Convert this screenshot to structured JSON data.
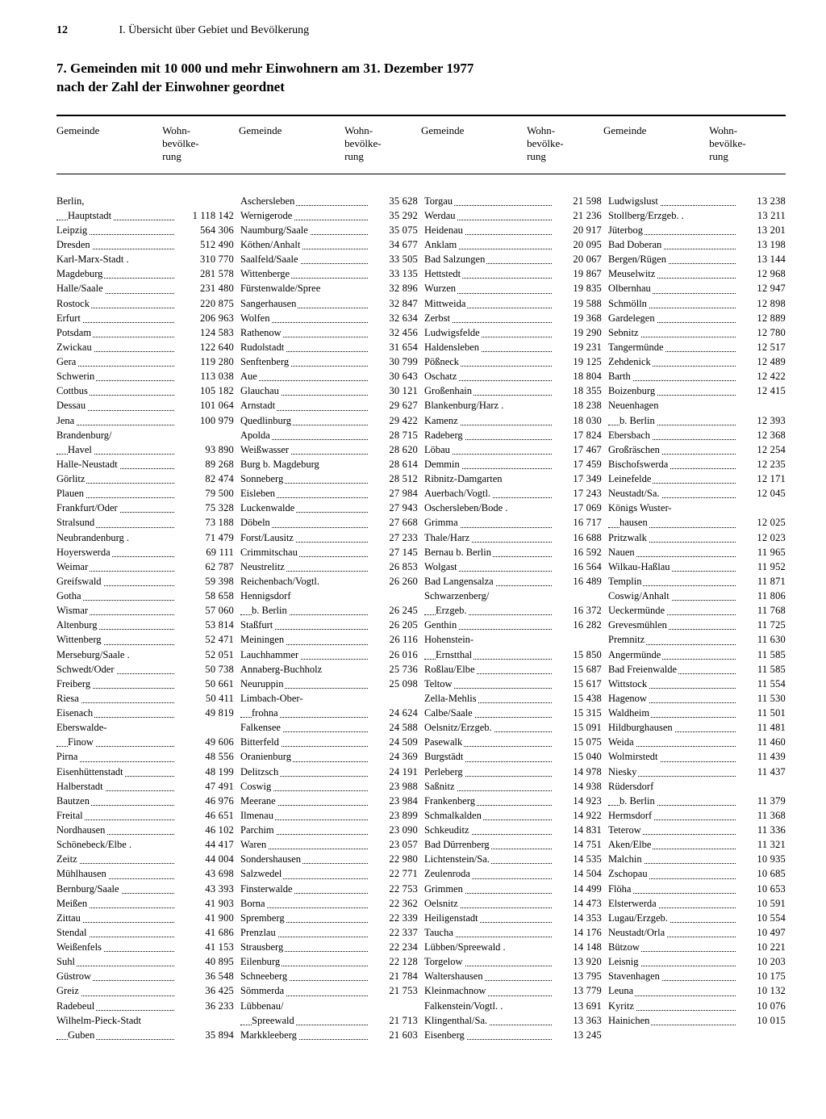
{
  "page_number": "12",
  "running_title": "I. Übersicht über Gebiet und Bevölkerung",
  "title_line1": "7. Gemeinden mit 10 000 und mehr Einwohnern am 31. Dezember 1977",
  "title_line2": "nach der Zahl der Einwohner geordnet",
  "header_gemeinde": "Gemeinde",
  "header_pop_l1": "Wohn-",
  "header_pop_l2": "bevölke-",
  "header_pop_l3": "rung",
  "table": {
    "type": "table",
    "columns": 4,
    "column_fields": [
      "Gemeinde",
      "Wohnbevölkerung"
    ],
    "font_family": "Times New Roman",
    "font_size_pt": 9,
    "text_color": "#000000",
    "background_color": "#ffffff",
    "rule_heavy_color": "#000000",
    "rule_light_color": "#000000",
    "dot_leader": true,
    "number_align": "right",
    "thousands_separator": " ",
    "col1": [
      {
        "name": "Berlin,",
        "pop": "",
        "nodots": true
      },
      {
        "name": "Hauptstadt",
        "pop": "1 118 142",
        "indent": true
      },
      {
        "name": "Leipzig",
        "pop": "564 306"
      },
      {
        "name": "Dresden",
        "pop": "512 490"
      },
      {
        "name": "Karl-Marx-Stadt .",
        "pop": "310 770",
        "nodots": true
      },
      {
        "name": "Magdeburg",
        "pop": "281 578"
      },
      {
        "name": "Halle/Saale",
        "pop": "231 480"
      },
      {
        "name": "Rostock",
        "pop": "220 875"
      },
      {
        "name": "Erfurt",
        "pop": "206 963"
      },
      {
        "name": "Potsdam",
        "pop": "124 583"
      },
      {
        "name": "Zwickau",
        "pop": "122 640"
      },
      {
        "name": "Gera",
        "pop": "119 280"
      },
      {
        "name": "Schwerin",
        "pop": "113 038"
      },
      {
        "name": "Cottbus",
        "pop": "105 182"
      },
      {
        "name": "Dessau",
        "pop": "101 064"
      },
      {
        "name": "Jena",
        "pop": "100 979"
      },
      {
        "name": "Brandenburg/",
        "pop": "",
        "nodots": true
      },
      {
        "name": "Havel",
        "pop": "93 890",
        "indent": true
      },
      {
        "name": "Halle-Neustadt",
        "pop": "89 268"
      },
      {
        "name": "Görlitz",
        "pop": "82 474"
      },
      {
        "name": "Plauen",
        "pop": "79 500"
      },
      {
        "name": "Frankfurt/Oder",
        "pop": "75 328"
      },
      {
        "name": "Stralsund",
        "pop": "73 188"
      },
      {
        "name": "Neubrandenburg .",
        "pop": "71 479",
        "nodots": true
      },
      {
        "name": "Hoyerswerda",
        "pop": "69 111"
      },
      {
        "name": "Weimar",
        "pop": "62 787"
      },
      {
        "name": "Greifswald",
        "pop": "59 398"
      },
      {
        "name": "Gotha",
        "pop": "58 658"
      },
      {
        "name": "Wismar",
        "pop": "57 060"
      },
      {
        "name": "Altenburg",
        "pop": "53 814"
      },
      {
        "name": "Wittenberg",
        "pop": "52 471"
      },
      {
        "name": "Merseburg/Saale .",
        "pop": "52 051",
        "nodots": true
      },
      {
        "name": "Schwedt/Oder",
        "pop": "50 738"
      },
      {
        "name": "Freiberg",
        "pop": "50 661"
      },
      {
        "name": "Riesa",
        "pop": "50 411"
      },
      {
        "name": "Eisenach",
        "pop": "49 819"
      },
      {
        "name": "Eberswalde-",
        "pop": "",
        "nodots": true
      },
      {
        "name": "Finow",
        "pop": "49 606",
        "indent": true
      },
      {
        "name": "Pirna",
        "pop": "48 556"
      },
      {
        "name": "Eisenhüttenstadt",
        "pop": "48 199"
      },
      {
        "name": "Halberstadt",
        "pop": "47 491"
      },
      {
        "name": "Bautzen",
        "pop": "46 976"
      },
      {
        "name": "Freital",
        "pop": "46 651"
      },
      {
        "name": "Nordhausen",
        "pop": "46 102"
      },
      {
        "name": "Schönebeck/Elbe .",
        "pop": "44 417",
        "nodots": true
      },
      {
        "name": "Zeitz",
        "pop": "44 004"
      },
      {
        "name": "Mühlhausen",
        "pop": "43 698"
      },
      {
        "name": "Bernburg/Saale",
        "pop": "43 393"
      },
      {
        "name": "Meißen",
        "pop": "41 903"
      },
      {
        "name": "Zittau",
        "pop": "41 900"
      },
      {
        "name": "Stendal",
        "pop": "41 686"
      },
      {
        "name": "Weißenfels",
        "pop": "41 153"
      },
      {
        "name": "Suhl",
        "pop": "40 895"
      },
      {
        "name": "Güstrow",
        "pop": "36 548"
      },
      {
        "name": "Greiz",
        "pop": "36 425"
      },
      {
        "name": "Radebeul",
        "pop": "36 233"
      },
      {
        "name": "Wilhelm-Pieck-Stadt",
        "pop": "",
        "nodots": true
      },
      {
        "name": "Guben",
        "pop": "35 894",
        "indent": true
      }
    ],
    "col2": [
      {
        "name": "Aschersleben",
        "pop": "35 628"
      },
      {
        "name": "Wernigerode",
        "pop": "35 292"
      },
      {
        "name": "Naumburg/Saale",
        "pop": "35 075"
      },
      {
        "name": "Köthen/Anhalt",
        "pop": "34 677"
      },
      {
        "name": "Saalfeld/Saale",
        "pop": "33 505"
      },
      {
        "name": "Wittenberge",
        "pop": "33 135"
      },
      {
        "name": "Fürstenwalde/Spree",
        "pop": "32 896",
        "nodots": true
      },
      {
        "name": "Sangerhausen",
        "pop": "32 847"
      },
      {
        "name": "Wolfen",
        "pop": "32 634"
      },
      {
        "name": "Rathenow",
        "pop": "32 456"
      },
      {
        "name": "Rudolstadt",
        "pop": "31 654"
      },
      {
        "name": "Senftenberg",
        "pop": "30 799"
      },
      {
        "name": "Aue",
        "pop": "30 643"
      },
      {
        "name": "Glauchau",
        "pop": "30 121"
      },
      {
        "name": "Arnstadt",
        "pop": "29 627"
      },
      {
        "name": "Quedlinburg",
        "pop": "29 422"
      },
      {
        "name": "Apolda",
        "pop": "28 715"
      },
      {
        "name": "Weißwasser",
        "pop": "28 620"
      },
      {
        "name": "Burg b. Magdeburg",
        "pop": "28 614",
        "nodots": true
      },
      {
        "name": "Sonneberg",
        "pop": "28 512"
      },
      {
        "name": "Eisleben",
        "pop": "27 984"
      },
      {
        "name": "Luckenwalde",
        "pop": "27 943"
      },
      {
        "name": "Döbeln",
        "pop": "27 668"
      },
      {
        "name": "Forst/Lausitz",
        "pop": "27 233"
      },
      {
        "name": "Crimmitschau",
        "pop": "27 145"
      },
      {
        "name": "Neustrelitz",
        "pop": "26 853"
      },
      {
        "name": "Reichenbach/Vogtl.",
        "pop": "26 260",
        "nodots": true
      },
      {
        "name": "Hennigsdorf",
        "pop": "",
        "nodots": true
      },
      {
        "name": "b. Berlin",
        "pop": "26 245",
        "indent": true
      },
      {
        "name": "Staßfurt",
        "pop": "26 205"
      },
      {
        "name": "Meiningen",
        "pop": "26 116"
      },
      {
        "name": "Lauchhammer",
        "pop": "26 016"
      },
      {
        "name": "Annaberg-Buchholz",
        "pop": "25 736",
        "nodots": true
      },
      {
        "name": "Neuruppin",
        "pop": "25 098"
      },
      {
        "name": "Limbach-Ober-",
        "pop": "",
        "nodots": true
      },
      {
        "name": "frohna",
        "pop": "24 624",
        "indent": true
      },
      {
        "name": "Falkensee",
        "pop": "24 588"
      },
      {
        "name": "Bitterfeld",
        "pop": "24 509"
      },
      {
        "name": "Oranienburg",
        "pop": "24 369"
      },
      {
        "name": "Delitzsch",
        "pop": "24 191"
      },
      {
        "name": "Coswig",
        "pop": "23 988"
      },
      {
        "name": "Meerane",
        "pop": "23 984"
      },
      {
        "name": "Ilmenau",
        "pop": "23 899"
      },
      {
        "name": "Parchim",
        "pop": "23 090"
      },
      {
        "name": "Waren",
        "pop": "23 057"
      },
      {
        "name": "Sondershausen",
        "pop": "22 980"
      },
      {
        "name": "Salzwedel",
        "pop": "22 771"
      },
      {
        "name": "Finsterwalde",
        "pop": "22 753"
      },
      {
        "name": "Borna",
        "pop": "22 362"
      },
      {
        "name": "Spremberg",
        "pop": "22 339"
      },
      {
        "name": "Prenzlau",
        "pop": "22 337"
      },
      {
        "name": "Strausberg",
        "pop": "22 234"
      },
      {
        "name": "Eilenburg",
        "pop": "22 128"
      },
      {
        "name": "Schneeberg",
        "pop": "21 784"
      },
      {
        "name": "Sömmerda",
        "pop": "21 753"
      },
      {
        "name": "Lübbenau/",
        "pop": "",
        "nodots": true
      },
      {
        "name": "Spreewald",
        "pop": "21 713",
        "indent": true
      },
      {
        "name": "Markkleeberg",
        "pop": "21 603"
      }
    ],
    "col3": [
      {
        "name": "Torgau",
        "pop": "21 598"
      },
      {
        "name": "Werdau",
        "pop": "21 236"
      },
      {
        "name": "Heidenau",
        "pop": "20 917"
      },
      {
        "name": "Anklam",
        "pop": "20 095"
      },
      {
        "name": "Bad Salzungen",
        "pop": "20 067"
      },
      {
        "name": "Hettstedt",
        "pop": "19 867"
      },
      {
        "name": "Wurzen",
        "pop": "19 835"
      },
      {
        "name": "Mittweida",
        "pop": "19 588"
      },
      {
        "name": "Zerbst",
        "pop": "19 368"
      },
      {
        "name": "Ludwigsfelde",
        "pop": "19 290"
      },
      {
        "name": "Haldensleben",
        "pop": "19 231"
      },
      {
        "name": "Pößneck",
        "pop": "19 125"
      },
      {
        "name": "Oschatz",
        "pop": "18 804"
      },
      {
        "name": "Großenhain",
        "pop": "18 355"
      },
      {
        "name": "Blankenburg/Harz .",
        "pop": "18 238",
        "nodots": true
      },
      {
        "name": "Kamenz",
        "pop": "18 030"
      },
      {
        "name": "Radeberg",
        "pop": "17 824"
      },
      {
        "name": "Löbau",
        "pop": "17 467"
      },
      {
        "name": "Demmin",
        "pop": "17 459"
      },
      {
        "name": "Ribnitz-Damgarten",
        "pop": "17 349",
        "nodots": true
      },
      {
        "name": "Auerbach/Vogtl.",
        "pop": "17 243"
      },
      {
        "name": "Oschersleben/Bode .",
        "pop": "17 069",
        "nodots": true
      },
      {
        "name": "Grimma",
        "pop": "16 717"
      },
      {
        "name": "Thale/Harz",
        "pop": "16 688"
      },
      {
        "name": "Bernau b. Berlin",
        "pop": "16 592"
      },
      {
        "name": "Wolgast",
        "pop": "16 564"
      },
      {
        "name": "Bad Langensalza",
        "pop": "16 489"
      },
      {
        "name": "Schwarzenberg/",
        "pop": "",
        "nodots": true
      },
      {
        "name": "Erzgeb.",
        "pop": "16 372",
        "indent": true
      },
      {
        "name": "Genthin",
        "pop": "16 282"
      },
      {
        "name": "Hohenstein-",
        "pop": "",
        "nodots": true
      },
      {
        "name": "Ernstthal",
        "pop": "15 850",
        "indent": true
      },
      {
        "name": "Roßlau/Elbe",
        "pop": "15 687"
      },
      {
        "name": "Teltow",
        "pop": "15 617"
      },
      {
        "name": "Zella-Mehlis",
        "pop": "15 438"
      },
      {
        "name": "Calbe/Saale",
        "pop": "15 315"
      },
      {
        "name": "Oelsnitz/Erzgeb.",
        "pop": "15 091"
      },
      {
        "name": "Pasewalk",
        "pop": "15 075"
      },
      {
        "name": "Burgstädt",
        "pop": "15 040"
      },
      {
        "name": "Perleberg",
        "pop": "14 978"
      },
      {
        "name": "Saßnitz",
        "pop": "14 938"
      },
      {
        "name": "Frankenberg",
        "pop": "14 923"
      },
      {
        "name": "Schmalkalden",
        "pop": "14 922"
      },
      {
        "name": "Schkeuditz",
        "pop": "14 831"
      },
      {
        "name": "Bad Dürrenberg",
        "pop": "14 751"
      },
      {
        "name": "Lichtenstein/Sa.",
        "pop": "14 535"
      },
      {
        "name": "Zeulenroda",
        "pop": "14 504"
      },
      {
        "name": "Grimmen",
        "pop": "14 499"
      },
      {
        "name": "Oelsnitz",
        "pop": "14 473"
      },
      {
        "name": "Heiligenstadt",
        "pop": "14 353"
      },
      {
        "name": "Taucha",
        "pop": "14 176"
      },
      {
        "name": "Lübben/Spreewald .",
        "pop": "14 148",
        "nodots": true
      },
      {
        "name": "Torgelow",
        "pop": "13 920"
      },
      {
        "name": "Waltershausen",
        "pop": "13 795"
      },
      {
        "name": "Kleinmachnow",
        "pop": "13 779"
      },
      {
        "name": "Falkenstein/Vogtl. .",
        "pop": "13 691",
        "nodots": true
      },
      {
        "name": "Klingenthal/Sa.",
        "pop": "13 363"
      },
      {
        "name": "Eisenberg",
        "pop": "13 245"
      }
    ],
    "col4": [
      {
        "name": "Ludwigslust",
        "pop": "13 238"
      },
      {
        "name": "Stollberg/Erzgeb. .",
        "pop": "13 211",
        "nodots": true
      },
      {
        "name": "Jüterbog",
        "pop": "13 201"
      },
      {
        "name": "Bad Doberan",
        "pop": "13 198"
      },
      {
        "name": "Bergen/Rügen",
        "pop": "13 144"
      },
      {
        "name": "Meuselwitz",
        "pop": "12 968"
      },
      {
        "name": "Olbernhau",
        "pop": "12 947"
      },
      {
        "name": "Schmölln",
        "pop": "12 898"
      },
      {
        "name": "Gardelegen",
        "pop": "12 889"
      },
      {
        "name": "Sebnitz",
        "pop": "12 780"
      },
      {
        "name": "Tangermünde",
        "pop": "12 517"
      },
      {
        "name": "Zehdenick",
        "pop": "12 489"
      },
      {
        "name": "Barth",
        "pop": "12 422"
      },
      {
        "name": "Boizenburg",
        "pop": "12 415"
      },
      {
        "name": "Neuenhagen",
        "pop": "",
        "nodots": true
      },
      {
        "name": "b. Berlin",
        "pop": "12 393",
        "indent": true
      },
      {
        "name": "Ebersbach",
        "pop": "12 368"
      },
      {
        "name": "Großräschen",
        "pop": "12 254"
      },
      {
        "name": "Bischofswerda",
        "pop": "12 235"
      },
      {
        "name": "Leinefelde",
        "pop": "12 171"
      },
      {
        "name": "Neustadt/Sa.",
        "pop": "12 045"
      },
      {
        "name": "Königs Wuster-",
        "pop": "",
        "nodots": true
      },
      {
        "name": "hausen",
        "pop": "12 025",
        "indent": true
      },
      {
        "name": "Pritzwalk",
        "pop": "12 023"
      },
      {
        "name": "Nauen",
        "pop": "11 965"
      },
      {
        "name": "Wilkau-Haßlau",
        "pop": "11 952"
      },
      {
        "name": "Templin",
        "pop": "11 871"
      },
      {
        "name": "Coswig/Anhalt",
        "pop": "11 806"
      },
      {
        "name": "Ueckermünde",
        "pop": "11 768"
      },
      {
        "name": "Grevesmühlen",
        "pop": "11 725"
      },
      {
        "name": "Premnitz",
        "pop": "11 630"
      },
      {
        "name": "Angermünde",
        "pop": "11 585"
      },
      {
        "name": "Bad Freienwalde",
        "pop": "11 585"
      },
      {
        "name": "Wittstock",
        "pop": "11 554"
      },
      {
        "name": "Hagenow",
        "pop": "11 530"
      },
      {
        "name": "Waldheim",
        "pop": "11 501"
      },
      {
        "name": "Hildburghausen",
        "pop": "11 481"
      },
      {
        "name": "Weida",
        "pop": "11 460"
      },
      {
        "name": "Wolmirstedt",
        "pop": "11 439"
      },
      {
        "name": "Niesky",
        "pop": "11 437"
      },
      {
        "name": "Rüdersdorf",
        "pop": "",
        "nodots": true
      },
      {
        "name": "b. Berlin",
        "pop": "11 379",
        "indent": true
      },
      {
        "name": "Hermsdorf",
        "pop": "11 368"
      },
      {
        "name": "Teterow",
        "pop": "11 336"
      },
      {
        "name": "Aken/Elbe",
        "pop": "11 321"
      },
      {
        "name": "Malchin",
        "pop": "10 935"
      },
      {
        "name": "Zschopau",
        "pop": "10 685"
      },
      {
        "name": "Flöha",
        "pop": "10 653"
      },
      {
        "name": "Elsterwerda",
        "pop": "10 591"
      },
      {
        "name": "Lugau/Erzgeb.",
        "pop": "10 554"
      },
      {
        "name": "Neustadt/Orla",
        "pop": "10 497"
      },
      {
        "name": "Bützow",
        "pop": "10 221"
      },
      {
        "name": "Leisnig",
        "pop": "10 203"
      },
      {
        "name": "Stavenhagen",
        "pop": "10 175"
      },
      {
        "name": "Leuna",
        "pop": "10 132"
      },
      {
        "name": "Kyritz",
        "pop": "10 076"
      },
      {
        "name": "Hainichen",
        "pop": "10 015"
      }
    ]
  }
}
